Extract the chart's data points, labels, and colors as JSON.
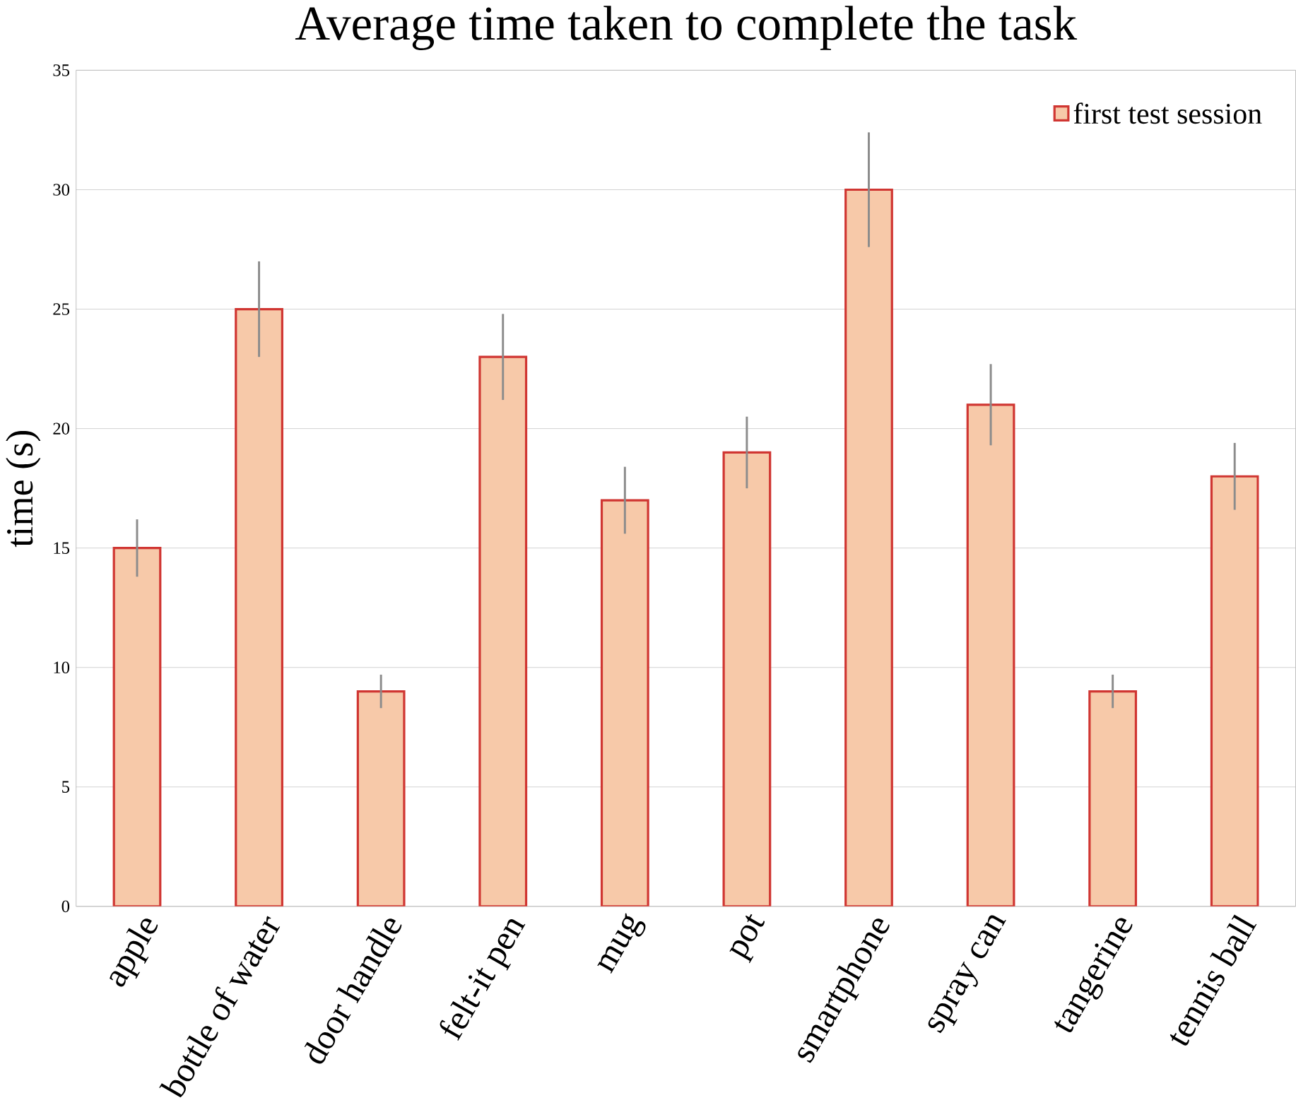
{
  "chart_data": {
    "type": "bar",
    "title": "Average time taken to complete the task",
    "ylabel": "time (s)",
    "categories": [
      "apple",
      "bottle of water",
      "door handle",
      "felt-it pen",
      "mug",
      "pot",
      "smartphone",
      "spray can",
      "tangerine",
      "tennis ball"
    ],
    "series": [
      {
        "name": "first test session",
        "color": "#f7c9a9",
        "values": [
          15,
          25,
          9,
          23,
          17,
          19,
          30,
          21,
          9,
          18
        ],
        "errors": [
          1.2,
          2,
          0.7,
          1.8,
          1.4,
          1.5,
          2.4,
          1.7,
          0.7,
          1.4
        ]
      }
    ],
    "ylim": [
      0,
      35
    ],
    "yticks": [
      0,
      5,
      10,
      15,
      20,
      25,
      30,
      35
    ],
    "grid": "y",
    "legend": "top right"
  }
}
